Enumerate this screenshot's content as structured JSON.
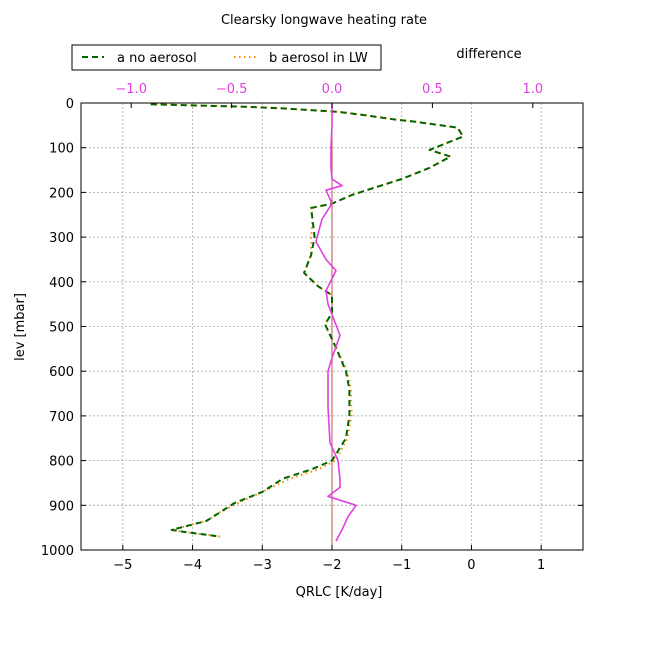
{
  "chart_data": {
    "type": "line",
    "title": "Clearsky longwave heating rate",
    "secondary_title": "difference",
    "xlabel": "QRLC [K/day]",
    "ylabel": "lev [mbar]",
    "xlim": [
      -5.6,
      1.6
    ],
    "ylim": [
      1000,
      0
    ],
    "y_inverted": true,
    "xticks": [
      -5,
      -4,
      -3,
      -2,
      -1,
      0,
      1
    ],
    "xtick_labels": [
      "−5",
      "−4",
      "−3",
      "−2",
      "−1",
      "0",
      "1"
    ],
    "yticks": [
      0,
      100,
      200,
      300,
      400,
      500,
      600,
      700,
      800,
      900,
      1000
    ],
    "ytick_labels": [
      "0",
      "100",
      "200",
      "300",
      "400",
      "500",
      "600",
      "700",
      "800",
      "900",
      "1000"
    ],
    "x2lim": [
      -1.25,
      1.25
    ],
    "x2ticks": [
      -1.0,
      -0.5,
      0.0,
      0.5,
      1.0
    ],
    "x2tick_labels": [
      "−1.0",
      "−0.5",
      "0.0",
      "0.5",
      "1.0"
    ],
    "grid": true,
    "legend": {
      "placement": "top-left",
      "entries": [
        "a no aerosol",
        "b aerosol in LW"
      ]
    },
    "zero_line_x2": 0.0,
    "colors": {
      "a": "#006400",
      "b": "#ff8c00",
      "difference": "#e040e0",
      "axis": "#000000",
      "grid": "#aaaaaa",
      "secondary_axis": "#e040e0",
      "zero_line": "#b03030"
    },
    "series": [
      {
        "name": "a no aerosol",
        "style": "dashed",
        "x": [
          -4.6,
          -3.3,
          -2.7,
          -1.9,
          -1.5,
          -1.1,
          -0.8,
          -0.2,
          -0.12,
          -0.6,
          -0.3,
          -0.6,
          -1.0,
          -1.4,
          -1.7,
          -2.0,
          -2.3,
          -2.28,
          -2.25,
          -2.3,
          -2.4,
          -2.2,
          -2.0,
          -2.0,
          -2.1,
          -1.95,
          -1.8,
          -1.75,
          -1.75,
          -1.8,
          -2.0,
          -2.3,
          -2.7,
          -3.0,
          -3.4,
          -3.6,
          -3.8,
          -4.3,
          -4.1,
          -3.6
        ],
        "y": [
          3,
          8,
          12,
          20,
          28,
          37,
          42,
          55,
          75,
          105,
          120,
          145,
          170,
          190,
          205,
          225,
          235,
          260,
          300,
          340,
          380,
          410,
          430,
          470,
          495,
          545,
          600,
          640,
          700,
          750,
          800,
          820,
          840,
          870,
          895,
          915,
          935,
          955,
          960,
          970
        ]
      },
      {
        "name": "b aerosol in LW",
        "style": "dotted",
        "x": [
          -4.6,
          -3.3,
          -2.7,
          -1.9,
          -1.5,
          -1.1,
          -0.8,
          -0.2,
          -0.12,
          -0.6,
          -0.3,
          -0.6,
          -1.0,
          -1.4,
          -1.7,
          -2.0,
          -2.3,
          -2.28,
          -2.3,
          -2.3,
          -2.4,
          -2.2,
          -2.0,
          -2.0,
          -2.1,
          -1.95,
          -1.78,
          -1.73,
          -1.72,
          -1.78,
          -1.95,
          -2.2,
          -2.6,
          -3.0,
          -3.35,
          -3.6,
          -3.8,
          -4.3,
          -4.1,
          -3.6
        ],
        "y": [
          3,
          8,
          12,
          20,
          28,
          37,
          42,
          55,
          75,
          105,
          120,
          145,
          170,
          190,
          205,
          225,
          235,
          260,
          300,
          340,
          380,
          410,
          430,
          470,
          495,
          545,
          600,
          640,
          700,
          750,
          800,
          820,
          840,
          870,
          895,
          915,
          935,
          955,
          960,
          970
        ]
      },
      {
        "name": "difference",
        "style": "solid",
        "axis": "secondary",
        "x": [
          0.0,
          0.0,
          -0.005,
          -0.005,
          -0.005,
          0.0,
          0.05,
          -0.03,
          0.0,
          -0.05,
          -0.08,
          -0.03,
          0.02,
          -0.03,
          -0.02,
          0.04,
          0.0,
          -0.02,
          -0.02,
          -0.01,
          0.03,
          0.04,
          0.04,
          -0.02,
          0.12,
          0.08,
          0.05,
          0.02
        ],
        "y": [
          0,
          50,
          100,
          120,
          145,
          170,
          185,
          195,
          225,
          260,
          310,
          350,
          375,
          420,
          450,
          520,
          570,
          600,
          680,
          760,
          800,
          840,
          860,
          880,
          900,
          925,
          955,
          980
        ]
      }
    ]
  }
}
